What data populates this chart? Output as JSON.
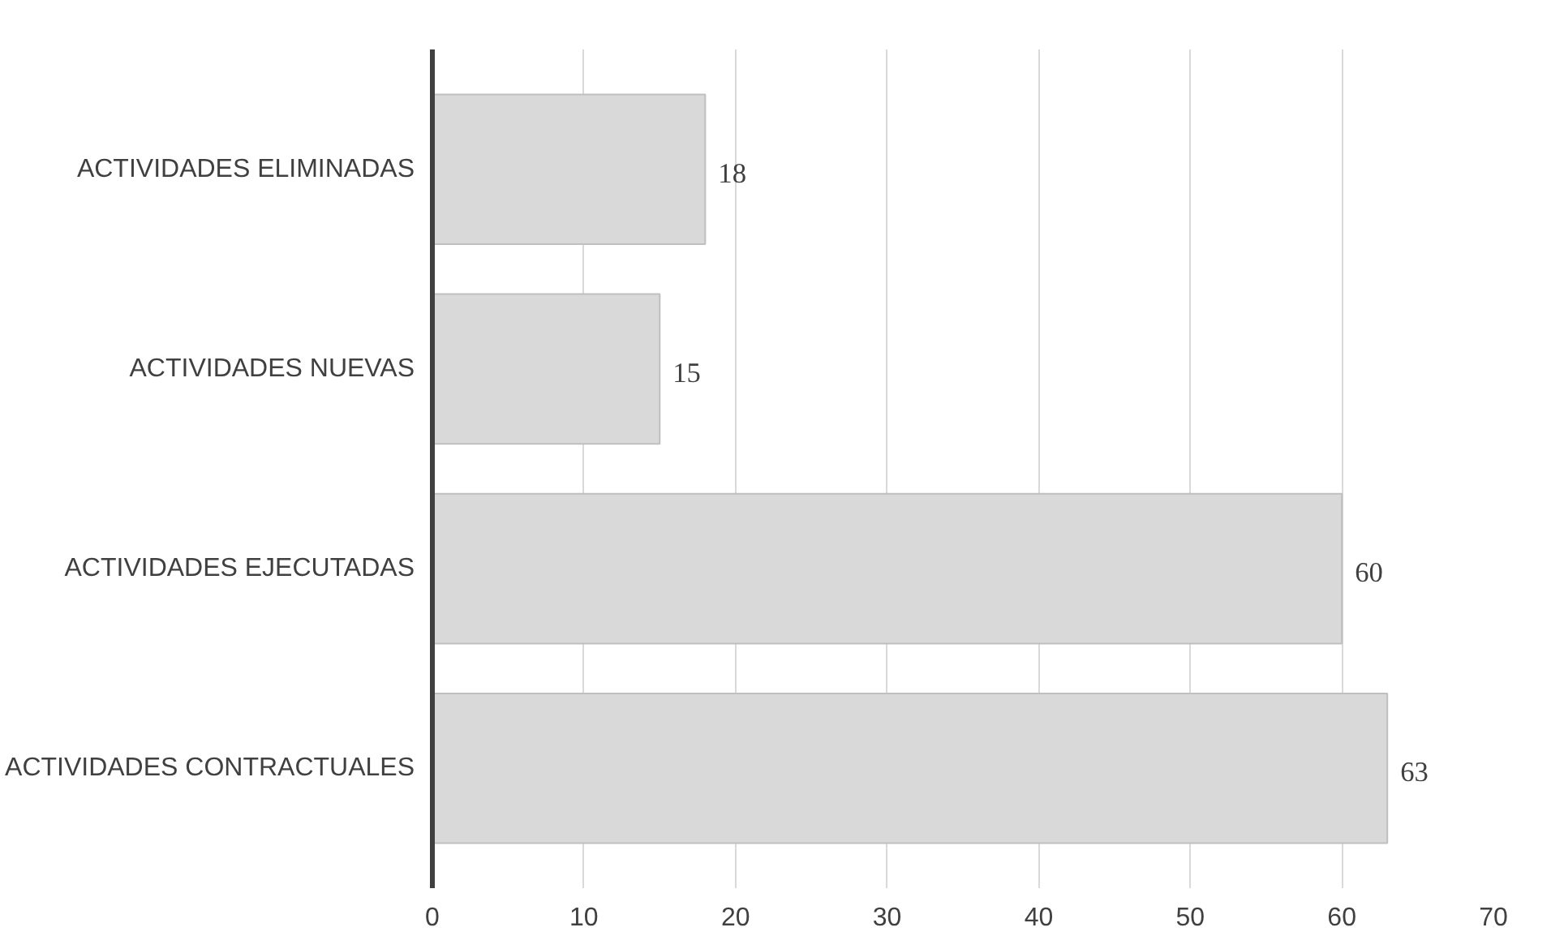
{
  "chart_data": {
    "type": "bar",
    "orientation": "horizontal",
    "categories": [
      "ACTIVIDADES ELIMINADAS",
      "ACTIVIDADES NUEVAS",
      "ACTIVIDADES EJECUTADAS",
      "ACTIVIDADES CONTRACTUALES"
    ],
    "values": [
      18,
      15,
      60,
      63
    ],
    "color": "#d9d9d9",
    "xlim": [
      0,
      70
    ],
    "xticks": [
      0,
      10,
      20,
      30,
      40,
      50,
      60,
      70
    ],
    "grid": "x",
    "data_labels": true
  }
}
